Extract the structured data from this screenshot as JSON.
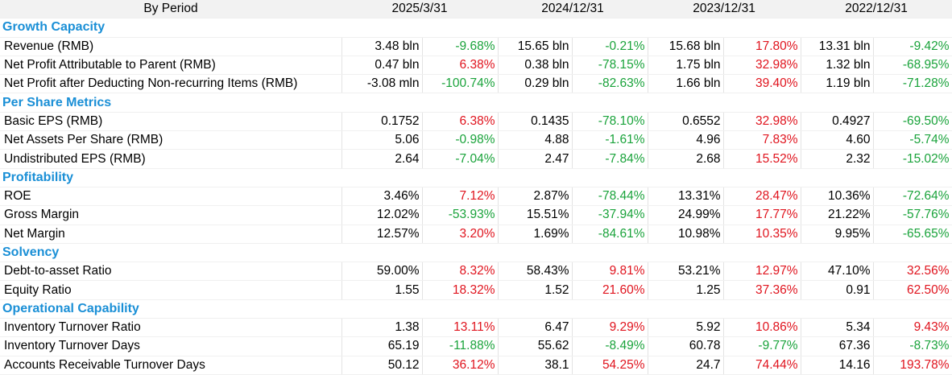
{
  "header": {
    "label": "By Period",
    "periods": [
      "2025/3/31",
      "2024/12/31",
      "2023/12/31",
      "2022/12/31"
    ]
  },
  "sections": [
    {
      "title": "Growth Capacity",
      "rows": [
        {
          "label": "Revenue (RMB)",
          "cells": [
            {
              "value": "3.48 bln",
              "change": "-9.68%",
              "trend": "neg"
            },
            {
              "value": "15.65 bln",
              "change": "-0.21%",
              "trend": "neg"
            },
            {
              "value": "15.68 bln",
              "change": "17.80%",
              "trend": "pos"
            },
            {
              "value": "13.31 bln",
              "change": "-9.42%",
              "trend": "neg"
            }
          ]
        },
        {
          "label": "Net Profit Attributable to Parent (RMB)",
          "cells": [
            {
              "value": "0.47 bln",
              "change": "6.38%",
              "trend": "pos"
            },
            {
              "value": "0.38 bln",
              "change": "-78.15%",
              "trend": "neg"
            },
            {
              "value": "1.75 bln",
              "change": "32.98%",
              "trend": "pos"
            },
            {
              "value": "1.32 bln",
              "change": "-68.95%",
              "trend": "neg"
            }
          ]
        },
        {
          "label": "Net Profit after Deducting Non-recurring Items (RMB)",
          "cells": [
            {
              "value": "-3.08 mln",
              "change": "-100.74%",
              "trend": "neg"
            },
            {
              "value": "0.29 bln",
              "change": "-82.63%",
              "trend": "neg"
            },
            {
              "value": "1.66 bln",
              "change": "39.40%",
              "trend": "pos"
            },
            {
              "value": "1.19 bln",
              "change": "-71.28%",
              "trend": "neg"
            }
          ]
        }
      ]
    },
    {
      "title": "Per Share Metrics",
      "rows": [
        {
          "label": "Basic EPS (RMB)",
          "cells": [
            {
              "value": "0.1752",
              "change": "6.38%",
              "trend": "pos"
            },
            {
              "value": "0.1435",
              "change": "-78.10%",
              "trend": "neg"
            },
            {
              "value": "0.6552",
              "change": "32.98%",
              "trend": "pos"
            },
            {
              "value": "0.4927",
              "change": "-69.50%",
              "trend": "neg"
            }
          ]
        },
        {
          "label": "Net Assets Per Share (RMB)",
          "cells": [
            {
              "value": "5.06",
              "change": "-0.98%",
              "trend": "neg"
            },
            {
              "value": "4.88",
              "change": "-1.61%",
              "trend": "neg"
            },
            {
              "value": "4.96",
              "change": "7.83%",
              "trend": "pos"
            },
            {
              "value": "4.60",
              "change": "-5.74%",
              "trend": "neg"
            }
          ]
        },
        {
          "label": "Undistributed EPS (RMB)",
          "cells": [
            {
              "value": "2.64",
              "change": "-7.04%",
              "trend": "neg"
            },
            {
              "value": "2.47",
              "change": "-7.84%",
              "trend": "neg"
            },
            {
              "value": "2.68",
              "change": "15.52%",
              "trend": "pos"
            },
            {
              "value": "2.32",
              "change": "-15.02%",
              "trend": "neg"
            }
          ]
        }
      ]
    },
    {
      "title": "Profitability",
      "rows": [
        {
          "label": "ROE",
          "cells": [
            {
              "value": "3.46%",
              "change": "7.12%",
              "trend": "pos"
            },
            {
              "value": "2.87%",
              "change": "-78.44%",
              "trend": "neg"
            },
            {
              "value": "13.31%",
              "change": "28.47%",
              "trend": "pos"
            },
            {
              "value": "10.36%",
              "change": "-72.64%",
              "trend": "neg"
            }
          ]
        },
        {
          "label": "Gross Margin",
          "cells": [
            {
              "value": "12.02%",
              "change": "-53.93%",
              "trend": "neg"
            },
            {
              "value": "15.51%",
              "change": "-37.94%",
              "trend": "neg"
            },
            {
              "value": "24.99%",
              "change": "17.77%",
              "trend": "pos"
            },
            {
              "value": "21.22%",
              "change": "-57.76%",
              "trend": "neg"
            }
          ]
        },
        {
          "label": "Net Margin",
          "cells": [
            {
              "value": "12.57%",
              "change": "3.20%",
              "trend": "pos"
            },
            {
              "value": "1.69%",
              "change": "-84.61%",
              "trend": "neg"
            },
            {
              "value": "10.98%",
              "change": "10.35%",
              "trend": "pos"
            },
            {
              "value": "9.95%",
              "change": "-65.65%",
              "trend": "neg"
            }
          ]
        }
      ]
    },
    {
      "title": "Solvency",
      "rows": [
        {
          "label": "Debt-to-asset Ratio",
          "cells": [
            {
              "value": "59.00%",
              "change": "8.32%",
              "trend": "pos"
            },
            {
              "value": "58.43%",
              "change": "9.81%",
              "trend": "pos"
            },
            {
              "value": "53.21%",
              "change": "12.97%",
              "trend": "pos"
            },
            {
              "value": "47.10%",
              "change": "32.56%",
              "trend": "pos"
            }
          ]
        },
        {
          "label": "Equity Ratio",
          "cells": [
            {
              "value": "1.55",
              "change": "18.32%",
              "trend": "pos"
            },
            {
              "value": "1.52",
              "change": "21.60%",
              "trend": "pos"
            },
            {
              "value": "1.25",
              "change": "37.36%",
              "trend": "pos"
            },
            {
              "value": "0.91",
              "change": "62.50%",
              "trend": "pos"
            }
          ]
        }
      ]
    },
    {
      "title": "Operational Capability",
      "rows": [
        {
          "label": "Inventory Turnover Ratio",
          "cells": [
            {
              "value": "1.38",
              "change": "13.11%",
              "trend": "pos"
            },
            {
              "value": "6.47",
              "change": "9.29%",
              "trend": "pos"
            },
            {
              "value": "5.92",
              "change": "10.86%",
              "trend": "pos"
            },
            {
              "value": "5.34",
              "change": "9.43%",
              "trend": "pos"
            }
          ]
        },
        {
          "label": "Inventory Turnover Days",
          "cells": [
            {
              "value": "65.19",
              "change": "-11.88%",
              "trend": "neg"
            },
            {
              "value": "55.62",
              "change": "-8.49%",
              "trend": "neg"
            },
            {
              "value": "60.78",
              "change": "-9.77%",
              "trend": "neg"
            },
            {
              "value": "67.36",
              "change": "-8.73%",
              "trend": "neg"
            }
          ]
        },
        {
          "label": "Accounts Receivable Turnover Days",
          "cells": [
            {
              "value": "50.12",
              "change": "36.12%",
              "trend": "pos"
            },
            {
              "value": "38.1",
              "change": "54.25%",
              "trend": "pos"
            },
            {
              "value": "24.7",
              "change": "74.44%",
              "trend": "pos"
            },
            {
              "value": "14.16",
              "change": "193.78%",
              "trend": "pos"
            }
          ]
        }
      ]
    }
  ],
  "colors": {
    "section_title": "#1a8fd6",
    "positive_change": "#e0141e",
    "negative_change": "#1aa33b",
    "header_bg": "#f2f2f2"
  }
}
